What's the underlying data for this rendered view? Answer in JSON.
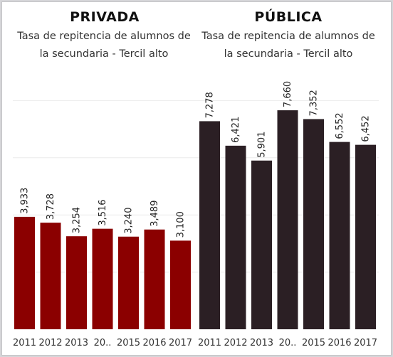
{
  "colors": {
    "privada": "#8b0000",
    "publica": "#2b1f24",
    "grid": "#ececec"
  },
  "chart_data": [
    {
      "type": "bar",
      "title": "PRIVADA",
      "subtitle": [
        "Tasa de repitencia de alumnos de",
        "la secundaria - Tercil alto"
      ],
      "categories": [
        "2011",
        "2012",
        "2013",
        "20..",
        "2015",
        "2016",
        "2017"
      ],
      "values": [
        3.933,
        3.728,
        3.254,
        3.516,
        3.24,
        3.489,
        3.1
      ],
      "labels": [
        "3,933",
        "3,728",
        "3,254",
        "3,516",
        "3,240",
        "3,489",
        "3,100"
      ],
      "color": "#8b0000",
      "ylim": [
        0,
        10
      ],
      "grid": true
    },
    {
      "type": "bar",
      "title": "PÚBLICA",
      "subtitle": [
        "Tasa de repitencia de alumnos de",
        "la secundaria - Tercil alto"
      ],
      "categories": [
        "2011",
        "2012",
        "2013",
        "20..",
        "2015",
        "2016",
        "2017"
      ],
      "values": [
        7.278,
        6.421,
        5.901,
        7.66,
        7.352,
        6.552,
        6.452
      ],
      "labels": [
        "7,278",
        "6,421",
        "5,901",
        "7,660",
        "7,352",
        "6,552",
        "6,452"
      ],
      "color": "#2b1f24",
      "ylim": [
        0,
        10
      ],
      "grid": true
    }
  ]
}
